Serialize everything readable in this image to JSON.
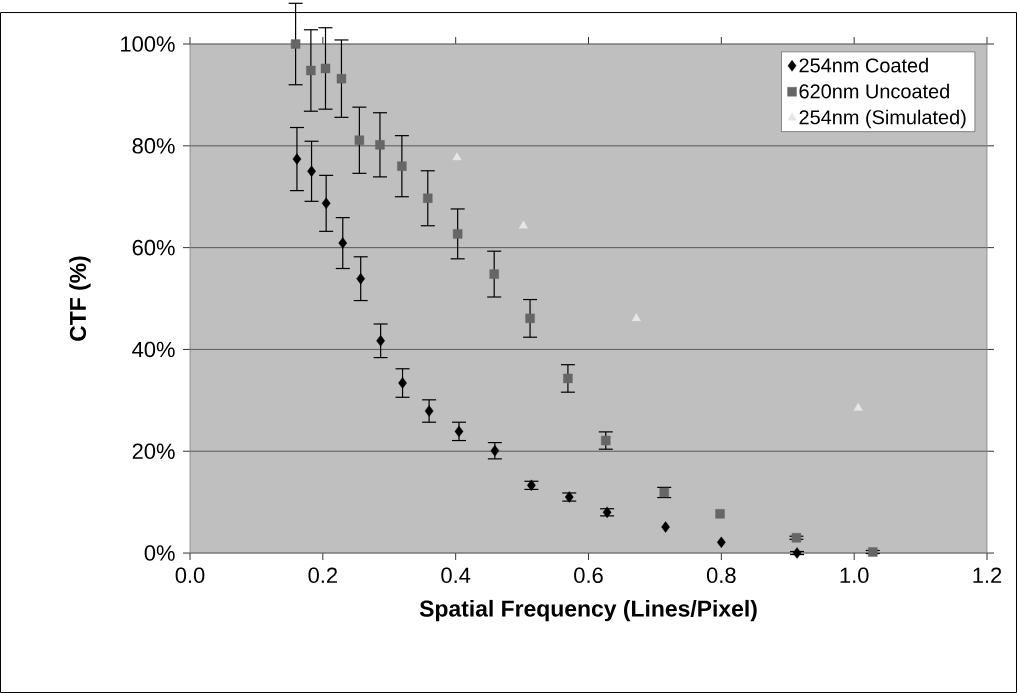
{
  "chart_data": {
    "type": "scatter",
    "xlabel": "Spatial Frequency (Lines/Pixel)",
    "ylabel": "CTF (%)",
    "xlim": [
      0,
      1.2
    ],
    "ylim": [
      0,
      100
    ],
    "xticks": [
      {
        "value": 0,
        "label": "0.0"
      },
      0.2,
      0.4,
      0.6,
      0.8,
      {
        "value": 1,
        "label": "1.0"
      },
      1.2
    ],
    "yticks": [
      {
        "value": 0,
        "label": "0%"
      },
      {
        "value": 20,
        "label": "20%"
      },
      {
        "value": 40,
        "label": "40%"
      },
      {
        "value": 60,
        "label": "60%"
      },
      {
        "value": 80,
        "label": "80%"
      },
      {
        "value": 100,
        "label": "100%"
      }
    ],
    "grid": "y",
    "legend": "top right",
    "series": [
      {
        "name": "254nm Coated",
        "color": "#000000",
        "marker": "diamond",
        "x": [
          0.161,
          0.183,
          0.205,
          0.23,
          0.257,
          0.287,
          0.32,
          0.36,
          0.405,
          0.459,
          0.514,
          0.571,
          0.628,
          0.716,
          0.8,
          0.914
        ],
        "values": [
          77.4,
          75.0,
          68.7,
          60.9,
          53.9,
          41.7,
          33.4,
          27.9,
          23.9,
          20.1,
          13.3,
          11.0,
          8.0,
          5.1,
          2.1,
          0.0
        ],
        "errors": [
          6.2,
          5.9,
          5.5,
          5.0,
          4.3,
          3.3,
          2.8,
          2.2,
          1.8,
          1.6,
          0.8,
          0.8,
          0.7,
          null,
          null,
          0.3
        ]
      },
      {
        "name": "620nm Uncoated",
        "color": "#666666",
        "marker": "square",
        "x": [
          0.159,
          0.182,
          0.204,
          0.228,
          0.255,
          0.286,
          0.319,
          0.358,
          0.403,
          0.458,
          0.512,
          0.569,
          0.626,
          0.714,
          0.798,
          0.913,
          1.028
        ],
        "values": [
          100,
          94.8,
          95.2,
          93.2,
          81.1,
          80.2,
          76.0,
          69.7,
          62.7,
          54.8,
          46.1,
          34.3,
          22.1,
          11.9,
          7.7,
          3.0,
          0.2
        ],
        "errors": [
          8,
          8,
          8,
          7.6,
          6.5,
          6.3,
          6.0,
          5.4,
          4.9,
          4.5,
          3.7,
          2.7,
          1.7,
          1.0,
          null,
          0.3,
          0.3
        ]
      },
      {
        "name": "254nm (Simulated)",
        "color": "#e6e6e6",
        "marker": "triangle",
        "x": [
          0.402,
          0.502,
          0.672,
          1.006
        ],
        "values": [
          77.7,
          64.3,
          46.1,
          28.5
        ]
      }
    ]
  }
}
